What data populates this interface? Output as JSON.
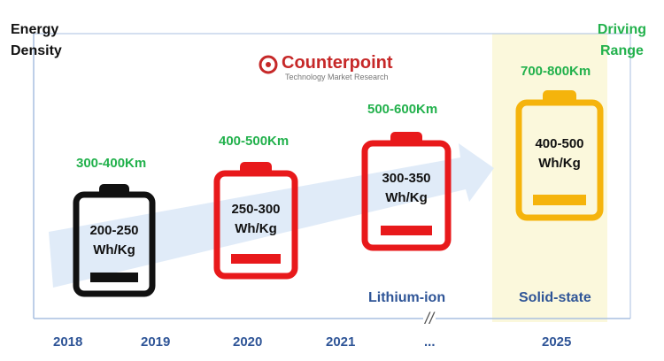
{
  "axis_labels": {
    "left": "Energy\nDensity",
    "right": "Driving\nRange"
  },
  "logo": {
    "name": "Counterpoint",
    "tagline": "Technology Market Research"
  },
  "batteries": [
    {
      "year": "2018",
      "density": "200-250\nWh/Kg",
      "range": "300-400Km",
      "color": "#111111"
    },
    {
      "year": "2020",
      "density": "250-300\nWh/Kg",
      "range": "400-500Km",
      "color": "#e8191b"
    },
    {
      "year": "2021",
      "density": "300-350\nWh/Kg",
      "range": "500-600Km",
      "color": "#e8191b"
    },
    {
      "year": "2025",
      "density": "400-500\nWh/Kg",
      "range": "700-800Km",
      "color": "#f5b40c"
    }
  ],
  "technologies": {
    "lithium_ion": "Lithium-ion",
    "solid_state": "Solid-state"
  },
  "x_axis": {
    "years": [
      "2018",
      "2019",
      "2020",
      "2021",
      "...",
      "2025"
    ],
    "break_mark": "//"
  },
  "colors": {
    "axis": "#a9bfe0",
    "arrow": "#dde9f7",
    "highlight": "#fbf8dc",
    "range_text": "#22b14c",
    "tech_text": "#2f5597"
  }
}
